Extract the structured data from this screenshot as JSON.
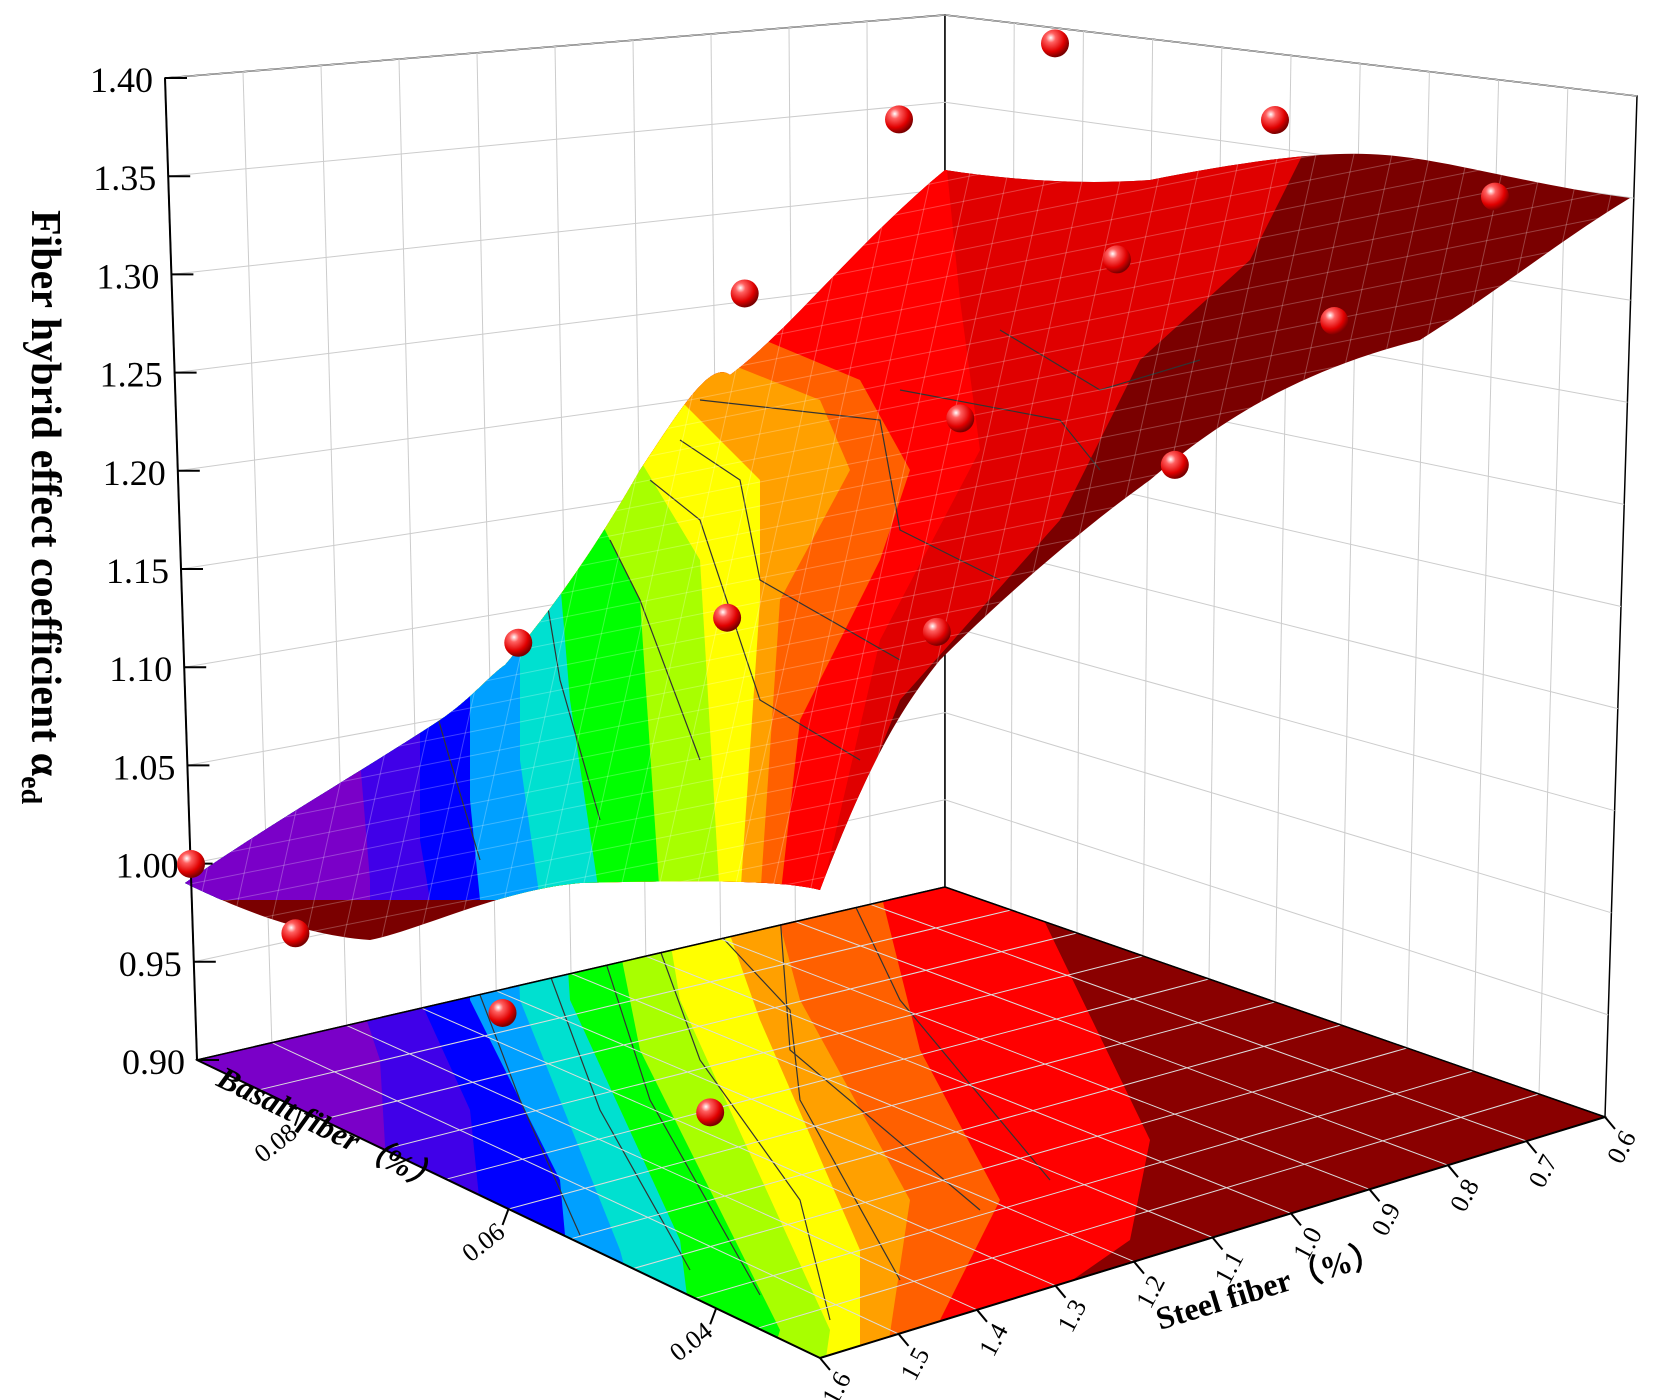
{
  "chart_data": {
    "type": "surface3d",
    "title": "",
    "zlabel_main": "Fiber hybrid effect coefficient α",
    "zlabel_sub": "ed",
    "xlabel": "Steel fiber（%）",
    "ylabel": "Basalt fiber（%）",
    "x_ticks": [
      "0.6",
      "0.7",
      "0.8",
      "0.9",
      "1.0",
      "1.1",
      "1.2",
      "1.3",
      "1.4",
      "1.5",
      "1.6"
    ],
    "y_ticks": [
      "0.08",
      "0.06",
      "0.04"
    ],
    "z_ticks": [
      "0.90",
      "0.95",
      "1.00",
      "1.05",
      "1.10",
      "1.15",
      "1.20",
      "1.25",
      "1.30",
      "1.35",
      "1.40"
    ],
    "xlim": [
      0.6,
      1.6
    ],
    "ylim": [
      0.03,
      0.09
    ],
    "zlim": [
      0.9,
      1.4
    ],
    "grid": true,
    "colormap": [
      "#7a00c8",
      "#0000ff",
      "#00c8ff",
      "#00ff00",
      "#ffff00",
      "#ff8000",
      "#ff0000",
      "#7a0000"
    ],
    "marker_color": "#ff0000",
    "points": [
      {
        "steel": 1.6,
        "basalt": 0.04,
        "alpha": 1.0
      },
      {
        "steel": 1.6,
        "basalt": 0.06,
        "alpha": 1.0
      },
      {
        "steel": 1.6,
        "basalt": 0.08,
        "alpha": 0.99
      },
      {
        "steel": 1.6,
        "basalt": 0.09,
        "alpha": 1.0
      },
      {
        "steel": 1.3,
        "basalt": 0.04,
        "alpha": 1.21
      },
      {
        "steel": 1.3,
        "basalt": 0.06,
        "alpha": 1.17
      },
      {
        "steel": 1.3,
        "basalt": 0.08,
        "alpha": 1.11
      },
      {
        "steel": 1.0,
        "basalt": 0.04,
        "alpha": 1.26
      },
      {
        "steel": 1.0,
        "basalt": 0.06,
        "alpha": 1.24
      },
      {
        "steel": 1.0,
        "basalt": 0.08,
        "alpha": 1.26
      },
      {
        "steel": 0.8,
        "basalt": 0.04,
        "alpha": 1.31
      },
      {
        "steel": 0.8,
        "basalt": 0.06,
        "alpha": 1.3
      },
      {
        "steel": 0.8,
        "basalt": 0.08,
        "alpha": 1.33
      },
      {
        "steel": 0.6,
        "basalt": 0.04,
        "alpha": 1.35
      },
      {
        "steel": 0.6,
        "basalt": 0.06,
        "alpha": 1.35
      },
      {
        "steel": 0.6,
        "basalt": 0.08,
        "alpha": 1.35
      }
    ]
  }
}
